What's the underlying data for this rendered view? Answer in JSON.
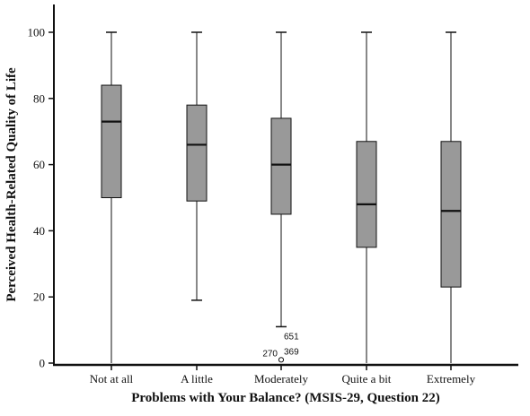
{
  "chart_data": {
    "type": "boxplot",
    "title": "",
    "xlabel": "Problems with Your Balance? (MSIS-29, Question 22)",
    "ylabel": "Perceived Health-Related Quality of Life",
    "ylim": [
      0,
      105
    ],
    "yticks": [
      0,
      20,
      40,
      60,
      80,
      100
    ],
    "categories": [
      "Not at all",
      "A little",
      "Moderately",
      "Quite a bit",
      "Extremely"
    ],
    "boxes": [
      {
        "category": "Not at all",
        "min": 0,
        "q1": 50,
        "median": 73,
        "q3": 84,
        "max": 100
      },
      {
        "category": "A little",
        "min": 19,
        "q1": 49,
        "median": 66,
        "q3": 78,
        "max": 100
      },
      {
        "category": "Moderately",
        "min": 11,
        "q1": 45,
        "median": 60,
        "q3": 74,
        "max": 100
      },
      {
        "category": "Quite a bit",
        "min": 0,
        "q1": 35,
        "median": 48,
        "q3": 67,
        "max": 100
      },
      {
        "category": "Extremely",
        "min": 0,
        "q1": 23,
        "median": 46,
        "q3": 67,
        "max": 100
      }
    ],
    "outliers": [
      {
        "category": "Moderately",
        "value": 1,
        "labels": [
          "270",
          "651",
          "369"
        ]
      }
    ],
    "grid": false,
    "colors": {
      "box_fill": "#999999",
      "stroke": "#111111"
    }
  }
}
